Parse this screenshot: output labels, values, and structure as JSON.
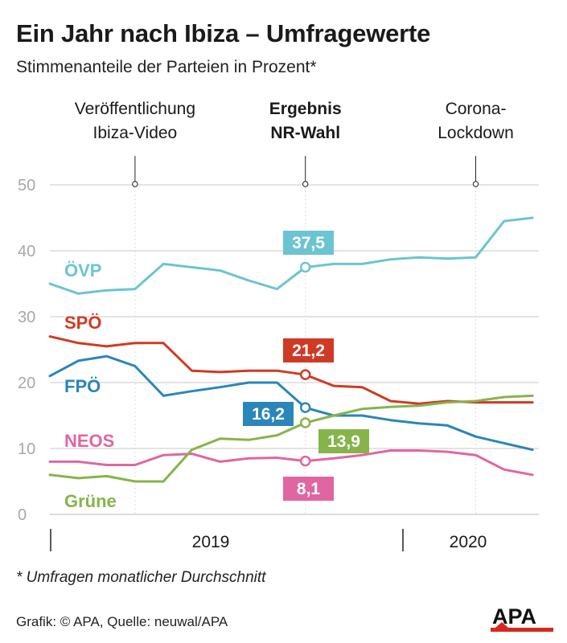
{
  "title": "Ein Jahr nach Ibiza – Umfragewerte",
  "subtitle": "Stimmenanteile der Parteien in Prozent*",
  "footnote": "* Umfragen monatlicher Durchschnitt",
  "credit": "Grafik: © APA, Quelle: neuwal/APA",
  "logo_text": "APA",
  "colors": {
    "oevp": "#6cc4d2",
    "spoe": "#cf3a24",
    "fpoe": "#2a86b9",
    "neos": "#e066a1",
    "gruene": "#86b44a",
    "grid": "#c8c8c8",
    "tick": "#a8a8a8"
  },
  "chart_data": {
    "type": "line",
    "ylim": [
      0,
      50
    ],
    "yticks": [
      0,
      10,
      20,
      30,
      40,
      50
    ],
    "x": [
      0,
      1,
      2,
      3,
      4,
      5,
      6,
      7,
      8,
      9,
      10,
      11,
      12,
      13,
      14,
      15,
      16,
      17
    ],
    "x_period_labels": [
      "2019",
      "2020"
    ],
    "events": [
      {
        "lines": [
          "Veröffentlichung",
          "Ibiza-Video"
        ],
        "x": 3,
        "bold": false
      },
      {
        "lines": [
          "Ergebnis",
          "NR-Wahl"
        ],
        "x": 9,
        "bold": true
      },
      {
        "lines": [
          "Corona-",
          "Lockdown"
        ],
        "x": 15,
        "bold": false
      }
    ],
    "series": [
      {
        "name": "ÖVP",
        "key": "oevp",
        "values": [
          35,
          33.5,
          34,
          34.2,
          38,
          37.5,
          37,
          35.5,
          34.2,
          37.5,
          38,
          38,
          38.7,
          39,
          38.8,
          39,
          44.5,
          45
        ],
        "highlight_value": "37,5",
        "highlight_index": 9
      },
      {
        "name": "SPÖ",
        "key": "spoe",
        "values": [
          27,
          26,
          25.5,
          26,
          26,
          21.8,
          21.6,
          21.8,
          21.8,
          21.2,
          19.5,
          19.3,
          17.2,
          16.8,
          17.2,
          17,
          17,
          17
        ],
        "highlight_value": "21,2",
        "highlight_index": 9
      },
      {
        "name": "FPÖ",
        "key": "fpoe",
        "values": [
          21,
          23.3,
          24,
          22.5,
          18,
          18.7,
          19.3,
          20,
          20,
          16.2,
          15,
          15,
          14.3,
          13.8,
          13.5,
          11.8,
          10.8,
          9.8
        ],
        "highlight_value": "16,2",
        "highlight_index": 9
      },
      {
        "name": "NEOS",
        "key": "neos",
        "values": [
          8,
          8,
          7.5,
          7.5,
          9,
          9.2,
          8,
          8.5,
          8.6,
          8.1,
          8.5,
          9,
          9.7,
          9.7,
          9.5,
          9,
          6.8,
          6
        ],
        "highlight_value": "8,1",
        "highlight_index": 9
      },
      {
        "name": "Grüne",
        "key": "gruene",
        "values": [
          6,
          5.5,
          5.8,
          5,
          5,
          9.8,
          11.5,
          11.3,
          12,
          13.9,
          15,
          16,
          16.3,
          16.5,
          17,
          17.2,
          17.8,
          18
        ],
        "highlight_value": "13,9",
        "highlight_index": 9
      }
    ]
  }
}
